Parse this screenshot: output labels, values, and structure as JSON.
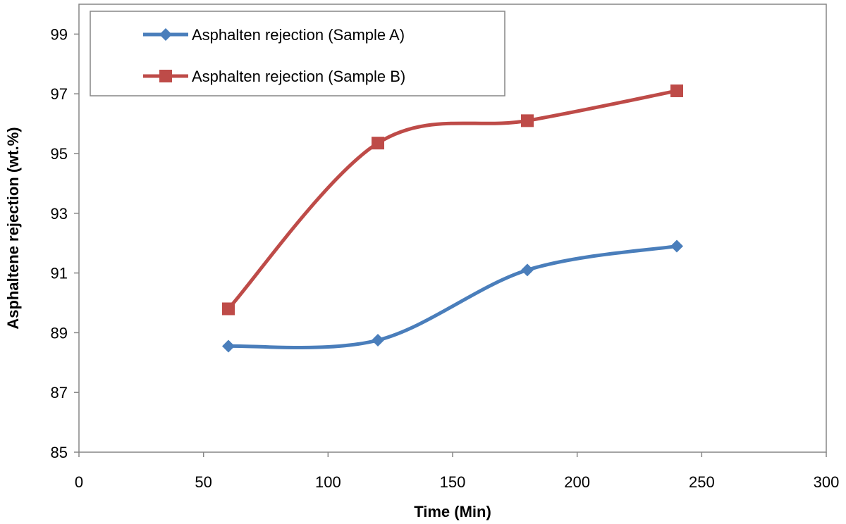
{
  "chart_data": {
    "type": "line",
    "smooth": true,
    "xlabel": "Time (Min)",
    "ylabel": "Asphaltene rejection (wt.%)",
    "xlim": [
      0,
      300
    ],
    "ylim": [
      85,
      100
    ],
    "xticks": [
      0,
      50,
      100,
      150,
      200,
      250,
      300
    ],
    "yticks": [
      85,
      87,
      89,
      91,
      93,
      95,
      97,
      99
    ],
    "grid": false,
    "legend_position": "top-left",
    "series": [
      {
        "name": "Asphalten rejection (Sample A)",
        "color": "#4A7EBB",
        "marker": "diamond",
        "x": [
          60,
          120,
          180,
          240
        ],
        "y": [
          88.55,
          88.75,
          91.1,
          91.9
        ]
      },
      {
        "name": "Asphalten rejection (Sample B)",
        "color": "#BE4B48",
        "marker": "square",
        "x": [
          60,
          120,
          180,
          240
        ],
        "y": [
          89.8,
          95.35,
          96.1,
          97.1
        ]
      }
    ]
  }
}
